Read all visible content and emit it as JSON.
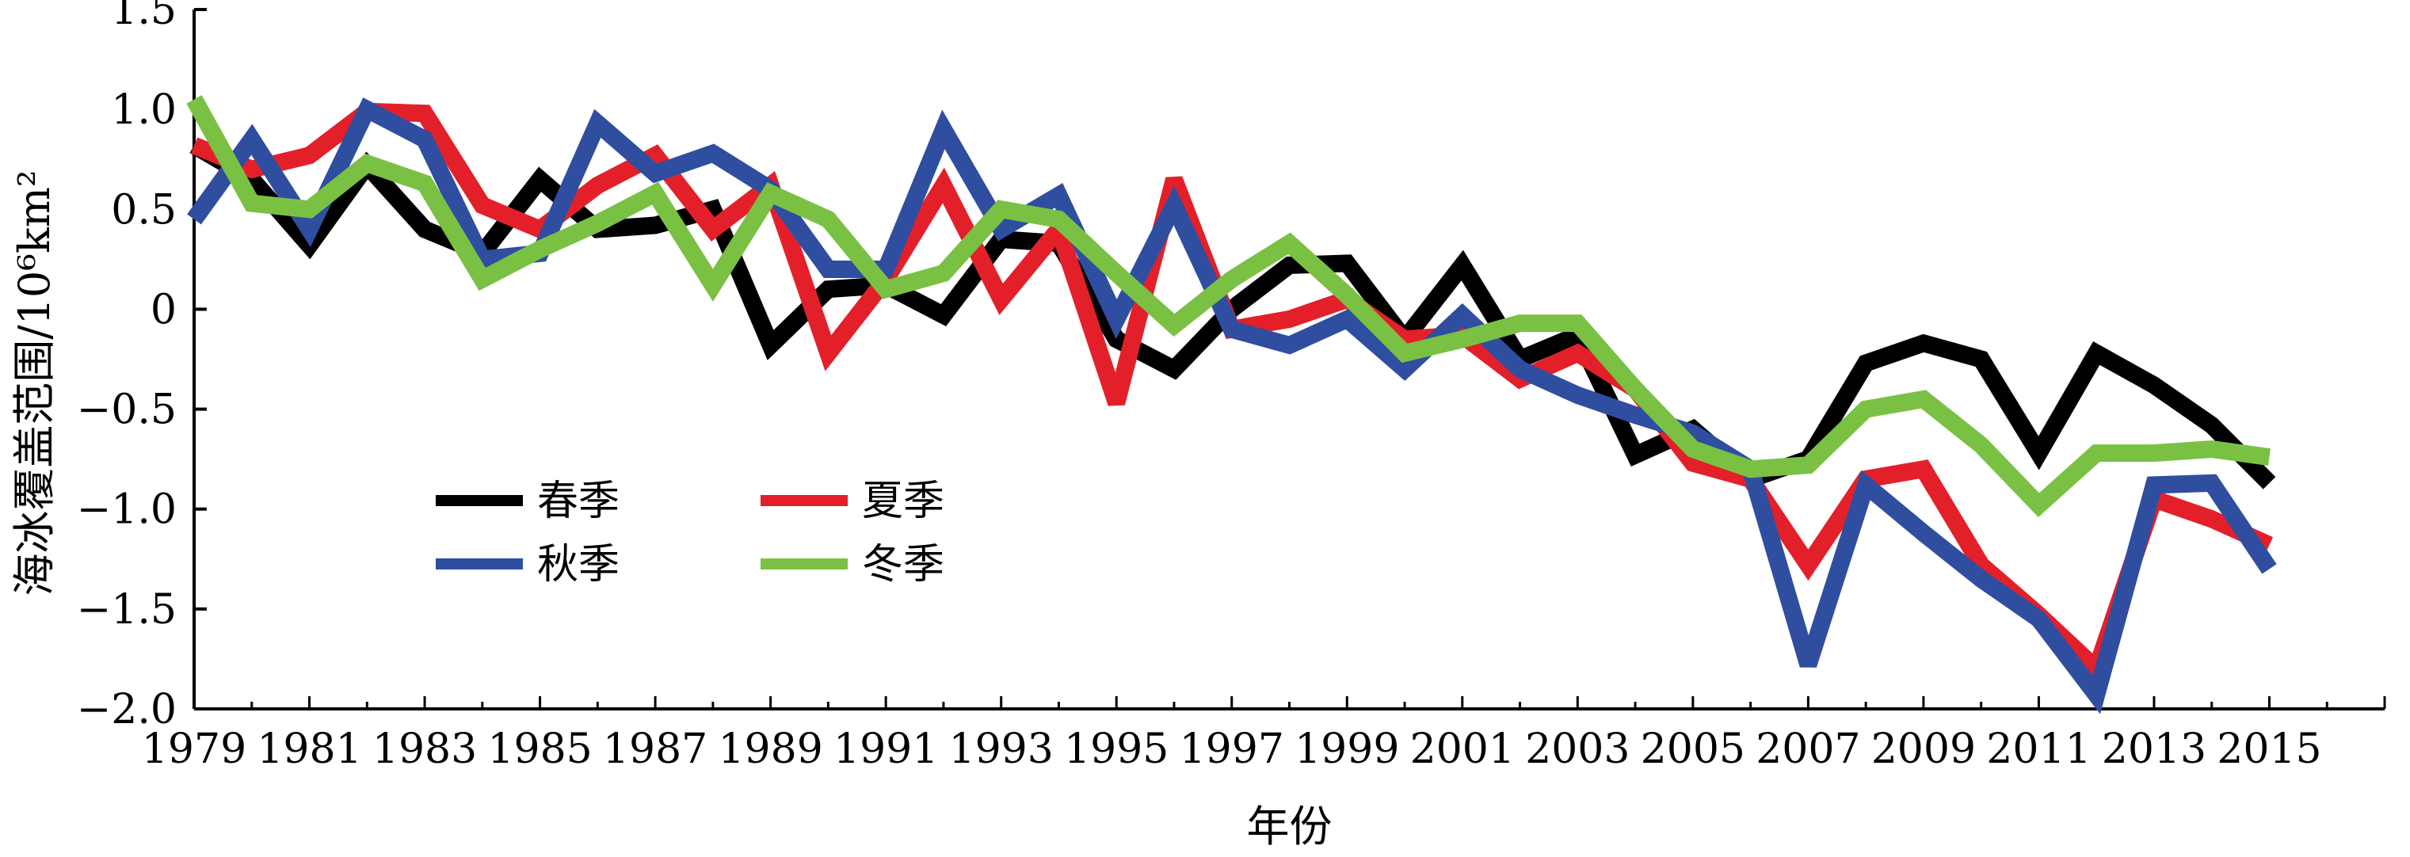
{
  "chart_data": {
    "type": "line",
    "title": "",
    "xlabel": "年份",
    "ylabel": "海冰覆盖范围/10⁶km²",
    "x": [
      1979,
      1980,
      1981,
      1982,
      1983,
      1984,
      1985,
      1986,
      1987,
      1988,
      1989,
      1990,
      1991,
      1992,
      1993,
      1994,
      1995,
      1996,
      1997,
      1998,
      1999,
      2000,
      2001,
      2002,
      2003,
      2004,
      2005,
      2006,
      2007,
      2008,
      2009,
      2010,
      2011,
      2012,
      2013,
      2014,
      2015,
      2016,
      2017
    ],
    "xlim": [
      1979,
      2017
    ],
    "ylim": [
      -2.0,
      1.5
    ],
    "xticks": [
      "1979",
      "1981",
      "1983",
      "1985",
      "1987",
      "1989",
      "1991",
      "1993",
      "1995",
      "1997",
      "1999",
      "2001",
      "2003",
      "2005",
      "2007",
      "2009",
      "2011",
      "2013",
      "2015"
    ],
    "yticks": [
      "1.5",
      "1.0",
      "0.5",
      "0",
      "−0.5",
      "−1.0",
      "−1.5",
      "−2.0"
    ],
    "legend_position": "left-bottom",
    "grid": false,
    "series": [
      {
        "name": "春季",
        "color": "#000000",
        "values": [
          0.82,
          0.65,
          0.32,
          0.72,
          0.4,
          0.28,
          0.65,
          0.4,
          0.42,
          0.5,
          -0.18,
          0.1,
          0.12,
          -0.03,
          0.35,
          0.33,
          -0.15,
          -0.3,
          0.0,
          0.22,
          0.23,
          -0.15,
          0.22,
          -0.25,
          -0.13,
          -0.73,
          -0.6,
          -0.85,
          -0.75,
          -0.27,
          -0.17,
          -0.25,
          -0.72,
          -0.22,
          -0.38,
          -0.58,
          -0.87,
          null,
          null
        ]
      },
      {
        "name": "夏季",
        "color": "#e3202a",
        "values": [
          0.82,
          0.7,
          0.77,
          0.99,
          0.98,
          0.52,
          0.4,
          0.62,
          0.77,
          0.4,
          0.62,
          -0.22,
          0.15,
          0.62,
          0.05,
          0.4,
          -0.47,
          0.65,
          -0.1,
          -0.05,
          0.05,
          -0.15,
          -0.13,
          -0.35,
          -0.22,
          -0.4,
          -0.77,
          -0.85,
          -1.28,
          -0.85,
          -0.8,
          -1.28,
          -1.53,
          -1.8,
          -0.95,
          -1.05,
          -1.18,
          null,
          null
        ]
      },
      {
        "name": "秋季",
        "color": "#2f4ea0",
        "values": [
          0.45,
          0.85,
          0.4,
          1.0,
          0.85,
          0.25,
          0.28,
          0.93,
          0.68,
          0.78,
          0.6,
          0.2,
          0.2,
          0.9,
          0.4,
          0.57,
          -0.05,
          0.52,
          -0.1,
          -0.18,
          -0.05,
          -0.3,
          -0.03,
          -0.3,
          -0.43,
          -0.53,
          -0.62,
          -0.8,
          -1.78,
          -0.88,
          -1.12,
          -1.35,
          -1.55,
          -1.93,
          -0.88,
          -0.87,
          -1.3,
          null,
          null
        ]
      },
      {
        "name": "冬季",
        "color": "#7ac143",
        "values": [
          1.05,
          0.53,
          0.5,
          0.73,
          0.63,
          0.15,
          0.3,
          0.43,
          0.58,
          0.12,
          0.58,
          0.45,
          0.1,
          0.18,
          0.5,
          0.45,
          0.18,
          -0.08,
          0.15,
          0.33,
          0.07,
          -0.22,
          -0.15,
          -0.07,
          -0.07,
          -0.4,
          -0.7,
          -0.8,
          -0.78,
          -0.5,
          -0.45,
          -0.68,
          -0.98,
          -0.72,
          -0.72,
          -0.7,
          -0.74,
          null,
          null
        ]
      }
    ]
  }
}
